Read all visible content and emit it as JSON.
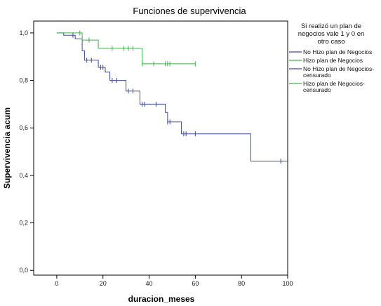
{
  "chart_data": {
    "type": "line",
    "step": true,
    "title": "Funciones de supervivencia",
    "xlabel": "duracion_meses",
    "ylabel": "Supervivencia acum",
    "xlim": [
      -10,
      100
    ],
    "ylim": [
      -0.02,
      1.05
    ],
    "xticks": [
      "0",
      "20",
      "40",
      "60",
      "80",
      "100"
    ],
    "yticks": [
      "0,0",
      "0,2",
      "0,4",
      "0,6",
      "0,8",
      "1,0"
    ],
    "grid": false,
    "legend_position": "right",
    "legend_title": "Si realizó un plan de negocios vale 1 y 0 en otro caso",
    "colors": {
      "no_plan": "#3a4aa0",
      "plan": "#3cb44b"
    },
    "series": [
      {
        "name": "No Hizo plan de Negocios",
        "color": "#3a4aa0",
        "x": [
          0,
          3,
          8,
          11,
          12,
          18,
          21,
          23,
          30,
          36,
          47,
          48,
          54,
          84,
          100
        ],
        "y": [
          1.0,
          0.99,
          0.975,
          0.925,
          0.885,
          0.855,
          0.835,
          0.8,
          0.755,
          0.7,
          0.665,
          0.625,
          0.575,
          0.46,
          0.46
        ]
      },
      {
        "name": "Hizo plan de Negocios",
        "color": "#3cb44b",
        "x": [
          0,
          11,
          18,
          37,
          60
        ],
        "y": [
          1.0,
          0.97,
          0.935,
          0.87,
          0.87
        ]
      }
    ],
    "censored": [
      {
        "name": "No Hizo plan de Negocios-censurado",
        "color": "#3a4aa0",
        "x": [
          7,
          13,
          15,
          19,
          20,
          24,
          26,
          31,
          33,
          37,
          38,
          43,
          48,
          49,
          55,
          56,
          60,
          97
        ],
        "y": [
          0.99,
          0.885,
          0.885,
          0.855,
          0.855,
          0.8,
          0.8,
          0.755,
          0.755,
          0.7,
          0.7,
          0.7,
          0.625,
          0.625,
          0.575,
          0.575,
          0.575,
          0.46
        ]
      },
      {
        "name": "Hizo plan de Negocios-censurado",
        "color": "#3cb44b",
        "x": [
          10,
          14,
          24,
          29,
          31,
          33,
          37,
          42,
          47,
          48,
          49,
          60
        ],
        "y": [
          1.0,
          0.97,
          0.935,
          0.935,
          0.935,
          0.935,
          0.87,
          0.87,
          0.87,
          0.87,
          0.87,
          0.87
        ]
      }
    ]
  }
}
